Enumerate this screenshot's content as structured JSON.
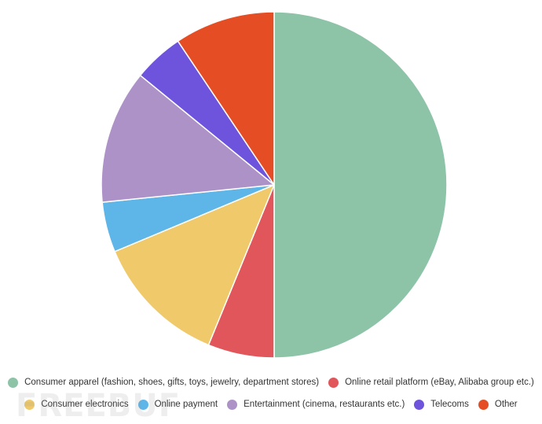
{
  "chart_data": {
    "type": "pie",
    "start_angle_deg": 0,
    "direction": "clockwise",
    "series": [
      {
        "name": "Consumer apparel (fashion, shoes, gifts, toys, jewelry, department stores)",
        "value": 50.0,
        "color": "#8dc3a7"
      },
      {
        "name": "Online retail platform (eBay, Alibaba group etc.)",
        "value": 6.2,
        "color": "#e0565b"
      },
      {
        "name": "Consumer electronics",
        "value": 12.5,
        "color": "#efc96a"
      },
      {
        "name": "Online payment",
        "value": 4.7,
        "color": "#5db5e8"
      },
      {
        "name": "Entertainment (cinema, restaurants etc.)",
        "value": 12.5,
        "color": "#ad92c8"
      },
      {
        "name": "Telecoms",
        "value": 4.7,
        "color": "#6e53dd"
      },
      {
        "name": "Other",
        "value": 9.4,
        "color": "#e54e24"
      }
    ],
    "legend_position": "bottom"
  },
  "watermark": {
    "text": "FREEBUF"
  }
}
